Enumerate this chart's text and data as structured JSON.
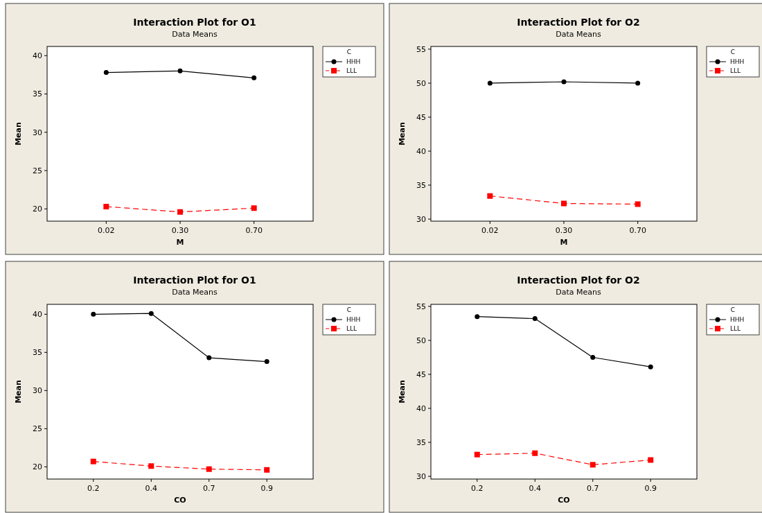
{
  "chart_data": [
    {
      "type": "line",
      "title": "Interaction Plot for O1",
      "subtitle": "Data Means",
      "xlabel": "M",
      "ylabel": "Mean",
      "legend_title": "C",
      "legend": "top right",
      "categories": [
        "0.02",
        "0.30",
        "0.70"
      ],
      "ylim": [
        18.4,
        41.2
      ],
      "yticks": [
        20,
        25,
        30,
        35,
        40
      ],
      "series": [
        {
          "name": "HHH",
          "color": "#000000",
          "values": [
            37.8,
            38.0,
            37.1
          ],
          "marker": "circle",
          "line_style": "solid"
        },
        {
          "name": "LLL",
          "color": "#ff0000",
          "values": [
            20.3,
            19.6,
            20.1
          ],
          "marker": "square",
          "line_style": "dashed"
        }
      ]
    },
    {
      "type": "line",
      "title": "Interaction Plot for O2",
      "subtitle": "Data Means",
      "xlabel": "M",
      "ylabel": "Mean",
      "legend_title": "C",
      "legend": "top right",
      "categories": [
        "0.02",
        "0.30",
        "0.70"
      ],
      "ylim": [
        29.7,
        55.4
      ],
      "yticks": [
        30,
        35,
        40,
        45,
        50,
        55
      ],
      "series": [
        {
          "name": "HHH",
          "color": "#000000",
          "values": [
            50.0,
            50.2,
            50.0
          ],
          "marker": "circle",
          "line_style": "solid"
        },
        {
          "name": "LLL",
          "color": "#ff0000",
          "values": [
            33.4,
            32.3,
            32.2
          ],
          "marker": "square",
          "line_style": "dashed"
        }
      ]
    },
    {
      "type": "line",
      "title": "Interaction Plot for O1",
      "subtitle": "Data Means",
      "xlabel": "CO",
      "ylabel": "Mean",
      "legend_title": "C",
      "legend": "top right",
      "categories": [
        "0.2",
        "0.4",
        "0.7",
        "0.9"
      ],
      "ylim": [
        18.4,
        41.3
      ],
      "yticks": [
        20,
        25,
        30,
        35,
        40
      ],
      "series": [
        {
          "name": "HHH",
          "color": "#000000",
          "values": [
            40.0,
            40.1,
            34.3,
            33.8
          ],
          "marker": "circle",
          "line_style": "solid"
        },
        {
          "name": "LLL",
          "color": "#ff0000",
          "values": [
            20.7,
            20.1,
            19.7,
            19.6
          ],
          "marker": "square",
          "line_style": "dashed"
        }
      ]
    },
    {
      "type": "line",
      "title": "Interaction Plot for O2",
      "subtitle": "Data Means",
      "xlabel": "CO",
      "ylabel": "Mean",
      "legend_title": "C",
      "legend": "top right",
      "categories": [
        "0.2",
        "0.4",
        "0.7",
        "0.9"
      ],
      "ylim": [
        29.6,
        55.3
      ],
      "yticks": [
        30,
        35,
        40,
        45,
        50,
        55
      ],
      "series": [
        {
          "name": "HHH",
          "color": "#000000",
          "values": [
            53.5,
            53.2,
            47.5,
            46.1
          ],
          "marker": "circle",
          "line_style": "solid"
        },
        {
          "name": "LLL",
          "color": "#ff0000",
          "values": [
            33.2,
            33.4,
            31.7,
            32.4
          ],
          "marker": "square",
          "line_style": "dashed"
        }
      ]
    }
  ]
}
